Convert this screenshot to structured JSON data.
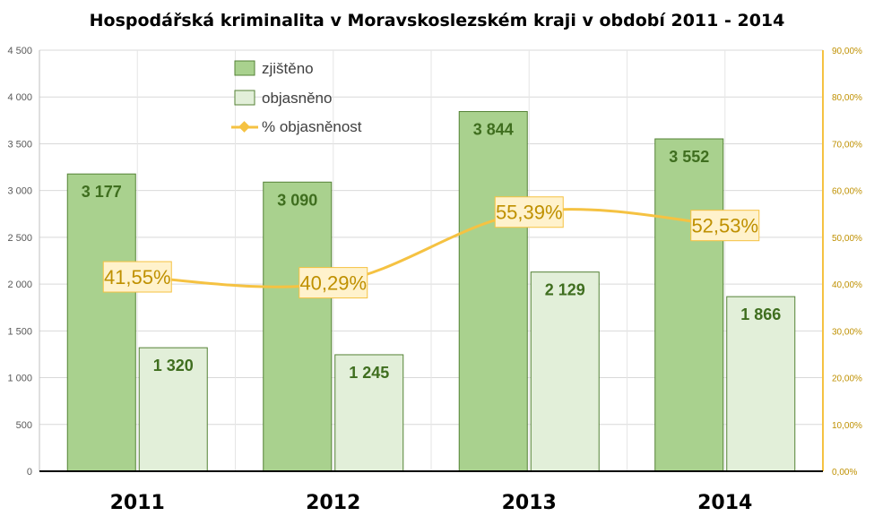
{
  "chart_data": {
    "type": "bar",
    "title": "Hospodářská kriminalita v Moravskoslezském kraji v období 2011 - 2014",
    "categories": [
      "2011",
      "2012",
      "2013",
      "2014"
    ],
    "series": [
      {
        "name": "zjištěno",
        "values": [
          3177,
          3090,
          3844,
          3552
        ],
        "labels": [
          "3 177",
          "3 090",
          "3 844",
          "3 552"
        ],
        "color": "#a9d18e",
        "kind": "bar"
      },
      {
        "name": "objasněno",
        "values": [
          1320,
          1245,
          2129,
          1866
        ],
        "labels": [
          "1 320",
          "1 245",
          "2 129",
          "1 866"
        ],
        "color": "#e2efd9",
        "kind": "bar"
      },
      {
        "name": "% objasněnost",
        "values": [
          41.55,
          40.29,
          55.39,
          52.53
        ],
        "labels": [
          "41,55%",
          "40,29%",
          "55,39%",
          "52,53%"
        ],
        "color": "#f5c242",
        "kind": "line",
        "axis": "right"
      }
    ],
    "ylim": [
      0,
      4500
    ],
    "y2lim": [
      0,
      90
    ],
    "yticks": [
      "0",
      "500",
      "1 000",
      "1 500",
      "2 000",
      "2 500",
      "3 000",
      "3 500",
      "4 000",
      "4 500"
    ],
    "y2ticks": [
      "0,00%",
      "10,00%",
      "20,00%",
      "30,00%",
      "40,00%",
      "50,00%",
      "60,00%",
      "70,00%",
      "80,00%",
      "90,00%"
    ],
    "grid": true,
    "legend_position": "top-left"
  }
}
